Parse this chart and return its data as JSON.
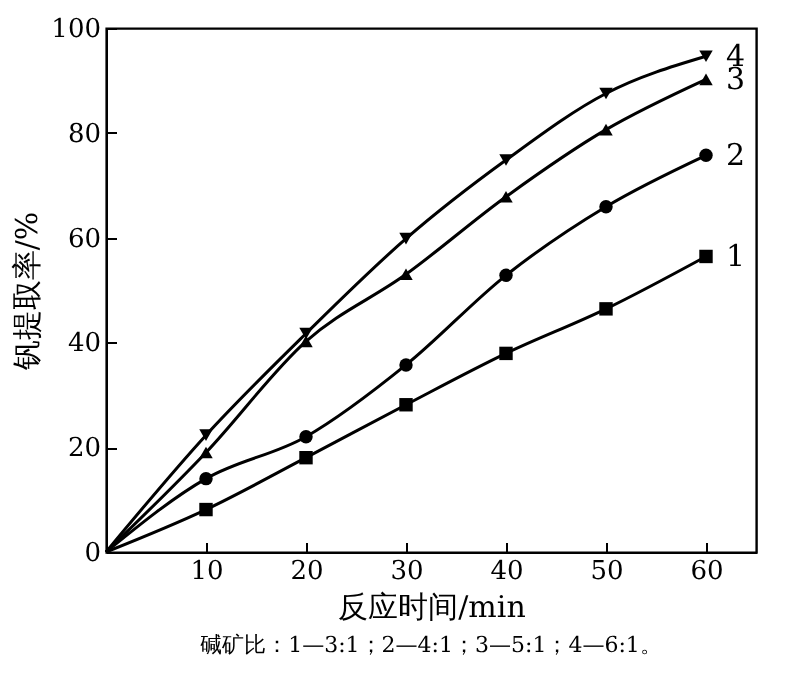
{
  "chart_data": {
    "type": "line",
    "xlabel": "反应时间/min",
    "ylabel": "钒提取率/%",
    "x": [
      0,
      10,
      20,
      30,
      40,
      50,
      60
    ],
    "series": [
      {
        "name": "1",
        "color": "#000000",
        "marker": "square",
        "values": [
          0,
          8.1,
          18,
          28.1,
          37.9,
          46.4,
          56.4
        ]
      },
      {
        "name": "2",
        "color": "#000000",
        "marker": "circle",
        "values": [
          0,
          14,
          22,
          35.7,
          52.8,
          65.9,
          75.7
        ]
      },
      {
        "name": "3",
        "color": "#000000",
        "marker": "triangle",
        "values": [
          0,
          19,
          40.2,
          53,
          67.8,
          80.6,
          90.2
        ]
      },
      {
        "name": "4",
        "color": "#000000",
        "marker": "triangle_down",
        "values": [
          0,
          22.3,
          41.7,
          59.8,
          74.8,
          87.5,
          94.6
        ]
      }
    ],
    "xlim": [
      0,
      65
    ],
    "xticks": [
      10,
      20,
      30,
      40,
      50,
      60
    ],
    "ylim": [
      0,
      100
    ],
    "yticks": [
      0,
      20,
      40,
      60,
      80,
      100
    ],
    "grid": false,
    "legend": false,
    "line_style": "solid",
    "annotations": [
      "碱矿比：1—3:1；2—4:1；3—5:1；4—6:1。"
    ]
  }
}
